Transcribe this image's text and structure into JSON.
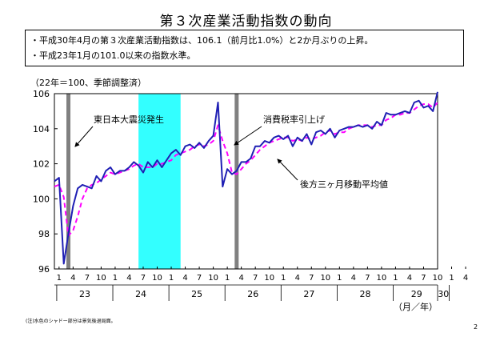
{
  "title": "第３次産業活動指数の動向",
  "summary": [
    "・平成30年4月の第３次産業活動指数は、106.1（前月比1.0%）と2か月ぶりの上昇。",
    "・平成23年1月の101.0以来の指数水準。"
  ],
  "unit_note": "（22年＝100、季節調整済）",
  "footnote": "(注)水色のシャドー部分は景気後退局面。",
  "page_number": "2",
  "colors": {
    "original": "#1f1fb4",
    "moving_avg": "#ff00ff",
    "recession_shade": "#33ffff",
    "event_bar": "#808080"
  },
  "chart_data": {
    "type": "line",
    "ylim": [
      96,
      106
    ],
    "y_ticks": [
      96,
      98,
      100,
      102,
      104,
      106
    ],
    "x_month_labels": [
      "1",
      "4",
      "7",
      "10",
      "1",
      "4",
      "7",
      "10",
      "1",
      "4",
      "7",
      "10",
      "1",
      "4",
      "7",
      "10",
      "1",
      "4",
      "7",
      "10",
      "1",
      "4",
      "7",
      "10",
      "1",
      "4",
      "7",
      "10",
      "1",
      "4"
    ],
    "year_labels": [
      "23",
      "24",
      "25",
      "26",
      "27",
      "28",
      "29",
      "30"
    ],
    "x_unit_label": "（月／年）",
    "start": "平成22年12月",
    "series": [
      {
        "values": [
          101.0,
          101.2,
          96.3,
          98.0,
          99.6,
          100.6,
          100.8,
          100.7,
          100.6,
          101.3,
          101.0,
          101.6,
          101.8,
          101.4,
          101.6,
          101.6,
          101.8,
          102.1,
          101.9,
          101.5,
          102.1,
          101.8,
          102.2,
          101.8,
          102.2,
          102.6,
          102.8,
          102.5,
          103.0,
          103.1,
          102.9,
          103.2,
          102.9,
          103.3,
          103.6,
          105.5,
          100.7,
          101.7,
          101.4,
          101.6,
          102.1,
          102.1,
          102.3,
          103.0,
          103.0,
          103.3,
          103.2,
          103.5,
          103.6,
          103.4,
          103.6,
          103.0,
          103.5,
          103.3,
          103.7,
          103.1,
          103.8,
          103.9,
          103.7,
          104.0,
          103.5,
          103.9,
          104.0,
          104.1,
          104.1,
          104.2,
          104.1,
          104.2,
          104.0,
          104.4,
          104.2,
          104.9,
          104.8,
          104.8,
          104.9,
          105.0,
          104.9,
          105.5,
          105.6,
          105.2,
          105.3,
          105.0,
          106.1
        ]
      },
      {
        "name": "後方三ヶ月移動平均値",
        "values": [
          100.7,
          100.8,
          100.1,
          97.9,
          98.2,
          99.0,
          100.0,
          100.6,
          100.8,
          100.9,
          101.1,
          101.3,
          101.5,
          101.4,
          101.5,
          101.6,
          101.7,
          101.9,
          102.0,
          101.8,
          101.8,
          101.8,
          102.0,
          102.0,
          102.1,
          102.2,
          102.5,
          102.6,
          102.7,
          102.8,
          103.0,
          103.1,
          103.0,
          103.1,
          103.3,
          104.2,
          103.3,
          102.6,
          101.5,
          101.4,
          101.7,
          102.0,
          102.2,
          102.5,
          102.8,
          103.0,
          103.2,
          103.3,
          103.4,
          103.5,
          103.5,
          103.3,
          103.4,
          103.3,
          103.5,
          103.4,
          103.5,
          103.6,
          103.8,
          103.9,
          103.7,
          103.8,
          103.8,
          104.0,
          104.1,
          104.2,
          104.2,
          104.2,
          104.1,
          104.2,
          104.2,
          104.5,
          104.6,
          104.8,
          104.8,
          104.9,
          104.9,
          105.1,
          105.3,
          105.4,
          105.4,
          105.2,
          105.5
        ]
      }
    ],
    "recession_shade_index": [
      18,
      27
    ],
    "event_bar_indices": [
      3,
      39
    ],
    "annotations": [
      "東日本大震災発生",
      "消費税率引上げ"
    ]
  }
}
